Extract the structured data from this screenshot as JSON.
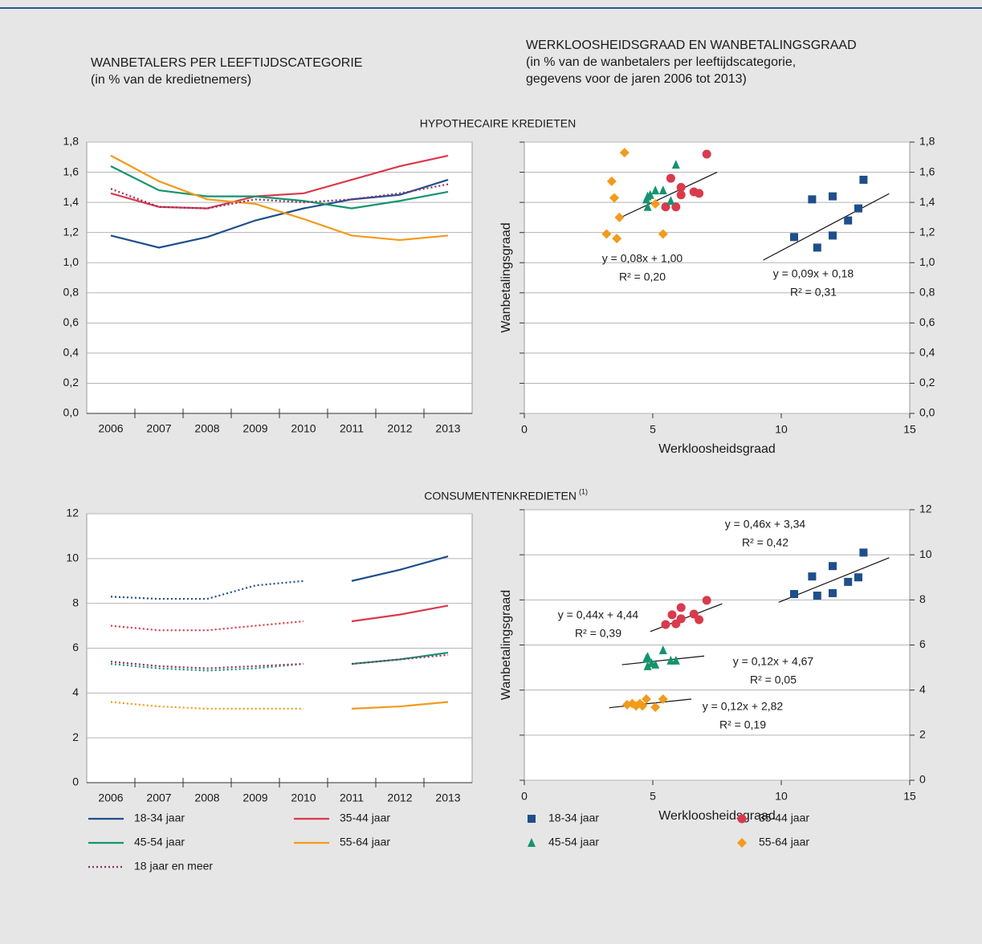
{
  "header": {
    "left_title": [
      "WANBETALERS PER LEEFTIJDSCATEGORIE",
      "(in % van de kredietnemers)"
    ],
    "right_title": [
      "WERKLOOSHEIDSGRAAD EN WANBETALINGSGRAAD",
      "(in % van de wanbetalers per leeftijdscategorie,",
      "gegevens voor de jaren 2006 tot 2013)"
    ]
  },
  "sections": [
    {
      "title": "HYPOTHECAIRE KREDIETEN"
    },
    {
      "title": "CONSUMENTENKREDIETEN",
      "footnote_mark": "(1)"
    }
  ],
  "chart_data": [
    {
      "type": "line",
      "categories": [
        "2006",
        "2007",
        "2008",
        "2009",
        "2010",
        "2011",
        "2012",
        "2013"
      ],
      "ylim": [
        0,
        1.8
      ],
      "yticks": [
        {
          "value": 0,
          "label": "0,0"
        },
        {
          "value": 0.2,
          "label": "0,2"
        },
        {
          "value": 0.4,
          "label": "0,4"
        },
        {
          "value": 0.6,
          "label": "0,6"
        },
        {
          "value": 0.8,
          "label": "0,8"
        },
        {
          "value": 1.0,
          "label": "1,0"
        },
        {
          "value": 1.2,
          "label": "1,2"
        },
        {
          "value": 1.4,
          "label": "1,4"
        },
        {
          "value": 1.6,
          "label": "1,6"
        },
        {
          "value": 1.8,
          "label": "1,8"
        }
      ],
      "grid": true,
      "series": [
        {
          "name": "18-34 jaar",
          "color": "#1f4f8b",
          "style": "solid",
          "values": [
            1.18,
            1.1,
            1.17,
            1.28,
            1.36,
            1.42,
            1.45,
            1.55
          ]
        },
        {
          "name": "35-44 jaar",
          "color": "#d93a4c",
          "style": "solid",
          "values": [
            1.46,
            1.37,
            1.36,
            1.44,
            1.46,
            1.55,
            1.64,
            1.71
          ]
        },
        {
          "name": "45-54 jaar",
          "color": "#14946e",
          "style": "solid",
          "values": [
            1.64,
            1.48,
            1.44,
            1.44,
            1.41,
            1.36,
            1.41,
            1.47
          ]
        },
        {
          "name": "55-64 jaar",
          "color": "#f29b1b",
          "style": "solid",
          "values": [
            1.71,
            1.54,
            1.42,
            1.39,
            1.29,
            1.18,
            1.15,
            1.18
          ]
        },
        {
          "name": "18 jaar en meer",
          "color": "#8b2e63",
          "style": "dotted",
          "values": [
            1.49,
            1.37,
            1.36,
            1.42,
            1.4,
            1.42,
            1.46,
            1.52
          ]
        }
      ]
    },
    {
      "type": "scatter",
      "xlabel": "Werkloosheidsgraad",
      "ylabel": "Wanbetalingsgraad",
      "xlim": [
        0,
        15
      ],
      "xticks": [
        0,
        5,
        10,
        15
      ],
      "ylim": [
        0,
        1.8
      ],
      "yticks": [
        {
          "value": 0,
          "label": "0,0"
        },
        {
          "value": 0.2,
          "label": "0,2"
        },
        {
          "value": 0.4,
          "label": "0,4"
        },
        {
          "value": 0.6,
          "label": "0,6"
        },
        {
          "value": 0.8,
          "label": "0,8"
        },
        {
          "value": 1.0,
          "label": "1,0"
        },
        {
          "value": 1.2,
          "label": "1,2"
        },
        {
          "value": 1.4,
          "label": "1,4"
        },
        {
          "value": 1.6,
          "label": "1,6"
        },
        {
          "value": 1.8,
          "label": "1,8"
        }
      ],
      "grid": true,
      "series": [
        {
          "name": "18-34 jaar",
          "color": "#1f4f8b",
          "marker": "square",
          "x": [
            10.5,
            11.2,
            11.4,
            12.0,
            12.0,
            12.6,
            13.0,
            13.2
          ],
          "values": [
            1.17,
            1.42,
            1.1,
            1.44,
            1.18,
            1.28,
            1.36,
            1.55
          ]
        },
        {
          "name": "35-44 jaar",
          "color": "#d93a4c",
          "marker": "circle",
          "x": [
            7.1,
            6.1,
            5.7,
            6.1,
            5.5,
            5.9,
            6.6,
            6.8
          ],
          "values": [
            1.72,
            1.5,
            1.56,
            1.45,
            1.37,
            1.37,
            1.47,
            1.46
          ]
        },
        {
          "name": "45-54 jaar",
          "color": "#14946e",
          "marker": "triangle",
          "x": [
            5.9,
            4.8,
            5.1,
            5.4,
            4.9,
            5.7,
            4.8,
            4.75
          ],
          "values": [
            1.65,
            1.44,
            1.48,
            1.48,
            1.45,
            1.41,
            1.37,
            1.42
          ]
        },
        {
          "name": "55-64 jaar",
          "color": "#f29b1b",
          "marker": "diamond",
          "x": [
            3.9,
            3.4,
            3.5,
            5.1,
            3.7,
            3.2,
            3.6,
            5.4
          ],
          "values": [
            1.73,
            1.54,
            1.43,
            1.39,
            1.3,
            1.19,
            1.16,
            1.19
          ]
        }
      ],
      "trendlines": [
        {
          "slope": 0.08,
          "intercept": 1.0,
          "xrange": [
            3.6,
            7.5
          ],
          "label": "y = 0,08x + 1,00",
          "r2_label": "R² = 0,20"
        },
        {
          "slope": 0.09,
          "intercept": 0.18,
          "xrange": [
            9.3,
            14.2
          ],
          "label": "y = 0,09x + 0,18",
          "r2_label": "R² = 0,31"
        }
      ]
    },
    {
      "type": "line",
      "categories": [
        "2006",
        "2007",
        "2008",
        "2009",
        "2010",
        "2011",
        "2012",
        "2013"
      ],
      "ylim": [
        0,
        12
      ],
      "yticks": [
        0,
        2,
        4,
        6,
        8,
        10,
        12
      ],
      "grid": true,
      "series": [
        {
          "color": "#1f4f8b",
          "style": "dotted",
          "values": [
            8.3,
            8.2,
            8.2,
            8.8,
            9.0,
            null,
            null,
            null
          ]
        },
        {
          "color": "#1f4f8b",
          "style": "solid",
          "values": [
            null,
            null,
            null,
            null,
            null,
            9.0,
            9.5,
            10.1
          ]
        },
        {
          "color": "#d93a4c",
          "style": "dotted",
          "values": [
            7.0,
            6.8,
            6.8,
            7.0,
            7.2,
            null,
            null,
            null
          ]
        },
        {
          "color": "#d93a4c",
          "style": "solid",
          "values": [
            null,
            null,
            null,
            null,
            null,
            7.2,
            7.5,
            7.9
          ]
        },
        {
          "color": "#14946e",
          "style": "dotted",
          "values": [
            5.3,
            5.1,
            5.0,
            5.1,
            5.3,
            null,
            null,
            null
          ]
        },
        {
          "color": "#14946e",
          "style": "solid",
          "values": [
            null,
            null,
            null,
            null,
            null,
            5.3,
            5.5,
            5.8
          ]
        },
        {
          "color": "#f29b1b",
          "style": "dotted",
          "values": [
            3.6,
            3.4,
            3.3,
            3.3,
            3.3,
            null,
            null,
            null
          ]
        },
        {
          "color": "#f29b1b",
          "style": "solid",
          "values": [
            null,
            null,
            null,
            null,
            null,
            3.3,
            3.4,
            3.6
          ]
        },
        {
          "color": "#8b2e63",
          "style": "dotted",
          "values": [
            5.4,
            5.2,
            5.1,
            5.2,
            5.3,
            null,
            null,
            null
          ]
        },
        {
          "color": "#8b2e63",
          "style": "dotted",
          "values": [
            null,
            null,
            null,
            null,
            null,
            5.3,
            5.5,
            5.7
          ]
        }
      ]
    },
    {
      "type": "scatter",
      "xlabel": "Werkloosheidsgraad",
      "ylabel": "Wanbetalingsgraad",
      "xlim": [
        0,
        15
      ],
      "xticks": [
        0,
        5,
        10,
        15
      ],
      "ylim": [
        0,
        12
      ],
      "yticks": [
        0,
        2,
        4,
        6,
        8,
        10,
        12
      ],
      "grid": true,
      "series": [
        {
          "color": "#1f4f8b",
          "marker": "square",
          "x": [
            10.5,
            11.2,
            11.4,
            12.0,
            12.0,
            12.6,
            13.0,
            13.2
          ],
          "values": [
            8.26,
            9.04,
            8.19,
            9.5,
            8.3,
            8.8,
            9.0,
            10.1
          ]
        },
        {
          "color": "#d93a4c",
          "marker": "circle",
          "x": [
            7.1,
            6.1,
            5.75,
            6.1,
            5.5,
            5.9,
            6.6,
            6.8
          ],
          "values": [
            7.98,
            7.66,
            7.34,
            7.16,
            6.91,
            6.94,
            7.37,
            7.12
          ]
        },
        {
          "color": "#14946e",
          "marker": "triangle",
          "x": [
            5.4,
            4.8,
            4.95,
            5.1,
            5.7,
            5.9,
            4.8,
            4.75
          ],
          "values": [
            5.77,
            5.48,
            5.2,
            5.13,
            5.31,
            5.31,
            5.06,
            5.4
          ]
        },
        {
          "color": "#f29b1b",
          "marker": "diamond",
          "x": [
            4.0,
            4.2,
            4.35,
            4.5,
            4.6,
            4.75,
            5.1,
            5.4
          ],
          "values": [
            3.35,
            3.4,
            3.3,
            3.4,
            3.3,
            3.6,
            3.24,
            3.6
          ]
        }
      ],
      "trendlines": [
        {
          "slope": 0.46,
          "intercept": 3.34,
          "xrange": [
            9.9,
            14.2
          ],
          "label": "y = 0,46x + 3,34",
          "r2_label": "R² = 0,42"
        },
        {
          "slope": 0.44,
          "intercept": 4.44,
          "xrange": [
            4.9,
            7.7
          ],
          "label": "y = 0,44x + 4,44",
          "r2_label": "R² = 0,39"
        },
        {
          "slope": 0.12,
          "intercept": 4.67,
          "xrange": [
            3.8,
            7.0
          ],
          "label": "y = 0,12x + 4,67",
          "r2_label": "R² = 0,05"
        },
        {
          "slope": 0.12,
          "intercept": 2.82,
          "xrange": [
            3.3,
            6.5
          ],
          "label": "y = 0,12x + 2,82",
          "r2_label": "R² = 0,19"
        }
      ]
    }
  ]
}
